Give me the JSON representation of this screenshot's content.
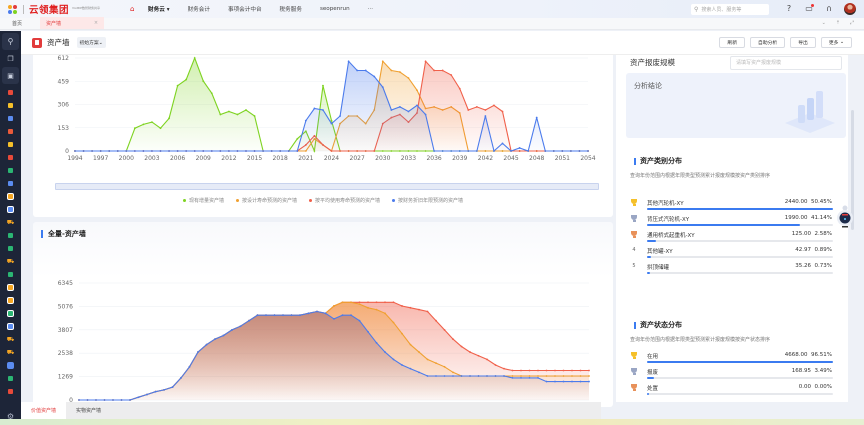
{
  "topbar": {
    "brand": "云领集团",
    "brand_sub": "YonBIP数智财务共享",
    "nav": [
      {
        "label": "财务云",
        "dropdown": true,
        "bold": true
      },
      {
        "label": "财务会计"
      },
      {
        "label": "事项会计中台"
      },
      {
        "label": "税务服务"
      },
      {
        "label": "seopenrun"
      },
      {
        "label": "···"
      }
    ],
    "search_placeholder": "搜索人员、服务等",
    "icons": [
      "help-icon",
      "message-icon",
      "headset-icon",
      "avatar"
    ]
  },
  "tabs": {
    "items": [
      {
        "label": "首页",
        "active": false
      },
      {
        "label": "资产墙",
        "active": true,
        "closable": true
      }
    ],
    "tools": [
      "⌄",
      "⇡",
      "⤢"
    ]
  },
  "header": {
    "title": "资产墙",
    "scheme": "初始方案",
    "buttons": [
      "刷新",
      "自助分析",
      "导出",
      "更多"
    ]
  },
  "chart1": {
    "legend": [
      {
        "label": "现有增量资产墙",
        "color": "#7ed321"
      },
      {
        "label": "按设计寿命预测的资产墙",
        "color": "#f0a030"
      },
      {
        "label": "按平均使用寿命预测的资产墙",
        "color": "#f0604a"
      },
      {
        "label": "按财务折旧年限预测的资产墙",
        "color": "#4b7bec"
      }
    ]
  },
  "chart2": {
    "title": "全量-资产墙"
  },
  "chart_data": [
    {
      "type": "area",
      "title": "",
      "x": [
        1994,
        1995,
        1996,
        1997,
        1998,
        1999,
        2000,
        2001,
        2002,
        2003,
        2004,
        2005,
        2006,
        2007,
        2008,
        2009,
        2010,
        2011,
        2012,
        2013,
        2014,
        2015,
        2016,
        2017,
        2018,
        2019,
        2020,
        2021,
        2022,
        2023,
        2024,
        2025,
        2026,
        2027,
        2028,
        2029,
        2030,
        2031,
        2032,
        2033,
        2034,
        2035,
        2036,
        2037,
        2038,
        2039,
        2040,
        2041,
        2042,
        2043,
        2044,
        2045,
        2046,
        2047,
        2048,
        2049,
        2050,
        2051,
        2052,
        2053,
        2054
      ],
      "xticks": [
        "1994",
        "1997",
        "2000",
        "2003",
        "2006",
        "2009",
        "2012",
        "2015",
        "2018",
        "2021",
        "2024",
        "2027",
        "2030",
        "2033",
        "2036",
        "2039",
        "2042",
        "2045",
        "2048",
        "2051",
        "2054"
      ],
      "yticks": [
        0,
        153,
        306,
        459,
        612
      ],
      "ylim": [
        0,
        612
      ],
      "series": [
        {
          "name": "现有增量资产墙",
          "color": "#7ed321",
          "values": [
            0,
            0,
            0,
            0,
            0,
            0,
            0,
            150,
            175,
            190,
            150,
            215,
            430,
            470,
            612,
            460,
            380,
            240,
            260,
            240,
            270,
            230,
            0,
            0,
            0,
            0,
            80,
            130,
            0,
            430,
            200,
            0,
            0,
            0,
            0,
            0,
            0,
            0,
            0,
            0,
            0,
            0,
            0,
            0,
            0,
            0,
            0,
            0,
            0,
            0,
            0,
            0,
            0,
            0,
            0,
            0,
            0,
            0,
            0,
            0,
            0
          ]
        },
        {
          "name": "按设计寿命预测的资产墙",
          "color": "#f0a030",
          "values": [
            0,
            0,
            0,
            0,
            0,
            0,
            0,
            0,
            0,
            0,
            0,
            0,
            0,
            0,
            0,
            0,
            0,
            0,
            0,
            0,
            0,
            0,
            0,
            0,
            0,
            0,
            0,
            0,
            80,
            40,
            0,
            180,
            230,
            230,
            180,
            270,
            590,
            530,
            520,
            480,
            400,
            280,
            290,
            270,
            290,
            250,
            0,
            0,
            0,
            0,
            0,
            0,
            0,
            0,
            0,
            0,
            0,
            0,
            0,
            0,
            0
          ]
        },
        {
          "name": "按平均使用寿命预测的资产墙",
          "color": "#f0604a",
          "values": [
            0,
            0,
            0,
            0,
            0,
            0,
            0,
            0,
            0,
            0,
            0,
            0,
            0,
            0,
            0,
            0,
            0,
            0,
            0,
            0,
            0,
            0,
            0,
            0,
            0,
            0,
            0,
            40,
            100,
            40,
            0,
            0,
            0,
            0,
            0,
            0,
            180,
            220,
            240,
            190,
            250,
            590,
            530,
            530,
            500,
            410,
            270,
            290,
            270,
            300,
            260,
            0,
            0,
            0,
            0,
            0,
            0,
            0,
            0,
            0,
            0
          ]
        },
        {
          "name": "按财务折旧年限预测的资产墙",
          "color": "#4b7bec",
          "values": [
            0,
            0,
            0,
            0,
            0,
            0,
            0,
            0,
            0,
            0,
            0,
            0,
            0,
            0,
            0,
            0,
            0,
            0,
            0,
            0,
            0,
            0,
            0,
            0,
            0,
            0,
            0,
            200,
            280,
            270,
            180,
            230,
            590,
            530,
            530,
            490,
            420,
            270,
            290,
            260,
            300,
            240,
            0,
            0,
            0,
            0,
            0,
            0,
            230,
            0,
            50,
            0,
            20,
            0,
            220,
            0,
            0,
            0,
            0,
            0,
            0
          ]
        }
      ]
    },
    {
      "type": "area",
      "title": "全量-资产墙",
      "yticks": [
        0,
        1269,
        2538,
        3807,
        5076,
        6345
      ],
      "ylim": [
        0,
        6345
      ],
      "series": [
        {
          "name": "按平均使用寿命预测的资产墙",
          "color": "#f0604a",
          "values": [
            0,
            0,
            0,
            0,
            0,
            0,
            0,
            150,
            300,
            450,
            550,
            700,
            1200,
            1800,
            2600,
            3000,
            3300,
            3500,
            3800,
            4000,
            4300,
            4600,
            4600,
            4600,
            4600,
            4600,
            4600,
            4700,
            4800,
            4700,
            5100,
            5300,
            5300,
            5300,
            5300,
            5300,
            5300,
            5300,
            5100,
            5000,
            4900,
            4800,
            4300,
            3800,
            3300,
            2900,
            2600,
            2400,
            2200,
            1900,
            1700,
            1600,
            1600,
            1600,
            1600,
            1600,
            1600,
            1600,
            1600,
            1600,
            1600
          ]
        },
        {
          "name": "按设计寿命预测的资产墙",
          "color": "#f0a030",
          "values": [
            0,
            0,
            0,
            0,
            0,
            0,
            0,
            150,
            300,
            450,
            550,
            700,
            1200,
            1800,
            2600,
            3000,
            3300,
            3500,
            3800,
            4000,
            4300,
            4600,
            4600,
            4600,
            4600,
            4600,
            4600,
            4700,
            4800,
            4700,
            5100,
            5300,
            5300,
            5200,
            5000,
            4900,
            4700,
            4200,
            3600,
            3000,
            2600,
            2200,
            2000,
            1800,
            1500,
            1300,
            1300,
            1300,
            1300,
            1300,
            1300,
            1300,
            1300,
            1300,
            1300,
            1300,
            1300,
            1300,
            1300,
            1300,
            1300
          ]
        },
        {
          "name": "按财务折旧年限预测的资产墙",
          "color": "#4b7bec",
          "values": [
            0,
            0,
            0,
            0,
            0,
            0,
            0,
            150,
            300,
            450,
            550,
            700,
            1200,
            1800,
            2600,
            3000,
            3300,
            3500,
            3800,
            4000,
            4300,
            4600,
            4600,
            4600,
            4600,
            4600,
            4600,
            4700,
            4800,
            4700,
            4400,
            4600,
            4600,
            4300,
            3700,
            3100,
            2600,
            2200,
            1900,
            1700,
            1500,
            1300,
            1300,
            1300,
            1300,
            1300,
            1300,
            1300,
            1300,
            1300,
            1300,
            1200,
            1200,
            1200,
            1200,
            1000,
            1000,
            1000,
            1000,
            1000,
            1000
          ]
        }
      ]
    }
  ],
  "right_panel": {
    "scrap_label": "资产报废规模",
    "scrap_placeholder": "请填写资产报废规模",
    "conclusion_label": "分析结论",
    "category": {
      "title": "资产类别分布",
      "desc": "查询年份范围内根据年限类型预测累计报废规模按资产类别排序",
      "rows": [
        {
          "rank": "1",
          "name": "其他汽轮机-XY",
          "value": "2440.00",
          "pct": "50.45%",
          "bar": 100
        },
        {
          "rank": "2",
          "name": "背压式汽轮机-XY",
          "value": "1990.00",
          "pct": "41.14%",
          "bar": 82
        },
        {
          "rank": "3",
          "name": "通用桥式起重机-XY",
          "value": "125.00",
          "pct": "2.58%",
          "bar": 5
        },
        {
          "rank": "4",
          "name": "其他罐-XY",
          "value": "42.97",
          "pct": "0.89%",
          "bar": 2
        },
        {
          "rank": "5",
          "name": "拱顶储罐",
          "value": "35.26",
          "pct": "0.73%",
          "bar": 1.5
        }
      ]
    },
    "status": {
      "title": "资产状态分布",
      "desc": "查询年份范围内根据年限类型预测累计报废规模按资产状态排序",
      "rows": [
        {
          "rank": "1",
          "name": "在用",
          "value": "4668.00",
          "pct": "96.51%",
          "bar": 100
        },
        {
          "rank": "2",
          "name": "报废",
          "value": "168.95",
          "pct": "3.49%",
          "bar": 4
        },
        {
          "rank": "3",
          "name": "处置",
          "value": "0.00",
          "pct": "0.00%",
          "bar": 0
        }
      ]
    }
  },
  "bottom_tabs": [
    {
      "label": "价值资产墙",
      "active": true
    },
    {
      "label": "实物资产墙",
      "active": false
    }
  ],
  "colors": {
    "accent": "#e23c3c",
    "primary": "#3b7bf0",
    "sidebar_bg": "#1d2538"
  }
}
